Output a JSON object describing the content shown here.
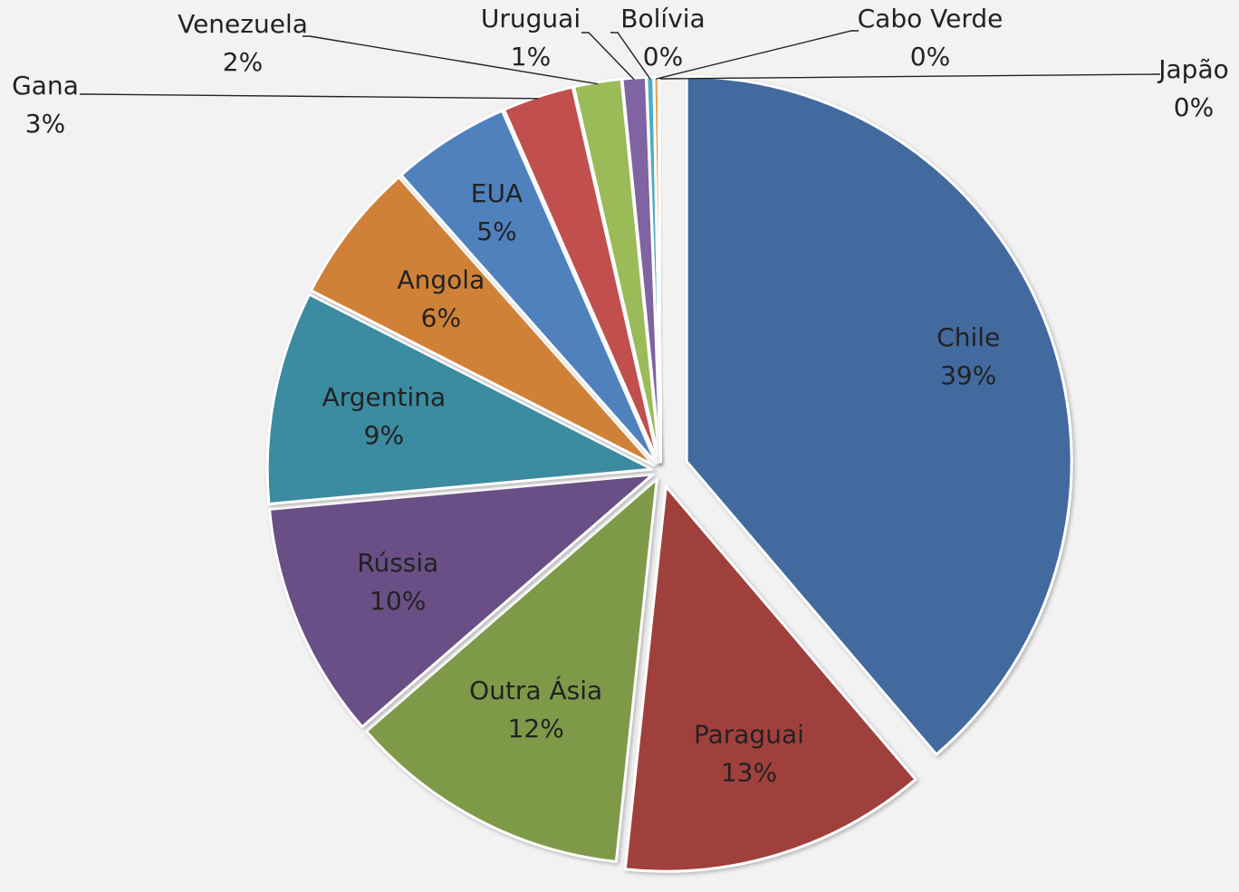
{
  "chart_data": {
    "type": "pie",
    "exploded": true,
    "legend": "none",
    "slices": [
      {
        "label": "Chile",
        "percent_label": "39%",
        "value": 39,
        "color": "#426b9f"
      },
      {
        "label": "Paraguai",
        "percent_label": "13%",
        "value": 13,
        "color": "#a0403d"
      },
      {
        "label": "Outra Ásia",
        "percent_label": "12%",
        "value": 12,
        "color": "#7e9a48"
      },
      {
        "label": "Rússia",
        "percent_label": "10%",
        "value": 10,
        "color": "#695085"
      },
      {
        "label": "Argentina",
        "percent_label": "9%",
        "value": 9,
        "color": "#3a8ba1"
      },
      {
        "label": "Angola",
        "percent_label": "6%",
        "value": 6,
        "color": "#d08139"
      },
      {
        "label": "EUA",
        "percent_label": "5%",
        "value": 5,
        "color": "#4f81bd"
      },
      {
        "label": "Gana",
        "percent_label": "3%",
        "value": 3,
        "color": "#c0504d"
      },
      {
        "label": "Venezuela",
        "percent_label": "2%",
        "value": 2,
        "color": "#9bbb59"
      },
      {
        "label": "Uruguai",
        "percent_label": "1%",
        "value": 1,
        "color": "#8064a2"
      },
      {
        "label": "Bolívia",
        "percent_label": "0%",
        "value": 0.3,
        "color": "#4bacc6"
      },
      {
        "label": "Cabo Verde",
        "percent_label": "0%",
        "value": 0.2,
        "color": "#f79646"
      },
      {
        "label": "Japão",
        "percent_label": "0%",
        "value": 0.1,
        "color": "#2c4d75"
      }
    ]
  }
}
